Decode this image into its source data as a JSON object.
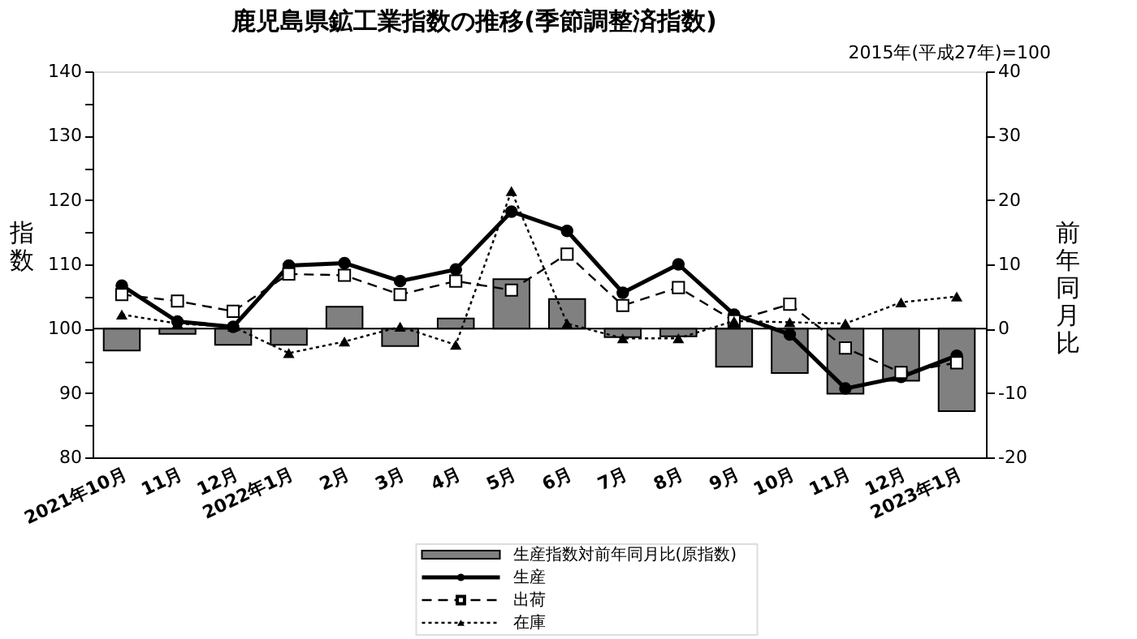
{
  "chart_data": {
    "type": "line",
    "title": "鹿児島県鉱工業指数の推移(季節調整済指数)",
    "subtitle": "2015年(平成27年)=100",
    "ylabel": "指数",
    "y2label": "前年同月比",
    "categories": [
      "2021年10月",
      "11月",
      "12月",
      "2022年1月",
      "2月",
      "3月",
      "4月",
      "5月",
      "6月",
      "7月",
      "8月",
      "9月",
      "10月",
      "11月",
      "12月",
      "2023年1月"
    ],
    "series": [
      {
        "name": "生産指数対前年同月比(原指数)",
        "type": "bar",
        "axis": "y2",
        "color": "#808080",
        "values": [
          -3.4,
          -0.8,
          -2.5,
          -2.5,
          3.4,
          -2.7,
          1.6,
          7.7,
          4.6,
          -1.3,
          -1.2,
          -5.9,
          -6.9,
          -10.1,
          -8.1,
          -12.8
        ]
      },
      {
        "name": "生産",
        "type": "line",
        "color": "#000000",
        "marker": "circle",
        "line_style": "solid",
        "values": [
          106.7,
          101.1,
          100.3,
          109.8,
          110.2,
          107.4,
          109.2,
          118.2,
          115.2,
          105.6,
          110.0,
          102.2,
          99.1,
          90.7,
          92.5,
          95.8
        ]
      },
      {
        "name": "出荷",
        "type": "line",
        "color": "#000000",
        "marker": "square",
        "line_style": "dashed",
        "values": [
          105.3,
          104.3,
          102.7,
          108.5,
          108.3,
          105.3,
          107.4,
          106.0,
          111.6,
          103.6,
          106.4,
          101.2,
          103.8,
          97.0,
          93.2,
          94.7
        ]
      },
      {
        "name": "在庫",
        "type": "line",
        "color": "#000000",
        "marker": "triangle",
        "line_style": "dotted",
        "values": [
          102.2,
          100.8,
          100.3,
          96.2,
          98.0,
          100.3,
          97.5,
          121.4,
          100.8,
          98.5,
          98.5,
          101.2,
          101.0,
          100.8,
          104.1,
          105.0
        ]
      }
    ],
    "ylim": [
      80,
      140
    ],
    "yticks": [
      80,
      {
        "value": 85,
        "label": null
      },
      90,
      {
        "value": 95,
        "label": null
      },
      100,
      {
        "value": 105,
        "label": null
      },
      110,
      {
        "value": 115,
        "label": null
      },
      120,
      {
        "value": 125,
        "label": null
      },
      130,
      {
        "value": 135,
        "label": null
      },
      140
    ],
    "y2lim": [
      -20,
      40
    ],
    "y2ticks": [
      -20,
      -10,
      0,
      10,
      20,
      30,
      40
    ],
    "ref_lines": [
      {
        "axis": "y2",
        "value": 0,
        "color": "#000000"
      }
    ],
    "grid": false,
    "legend": "bottom"
  }
}
